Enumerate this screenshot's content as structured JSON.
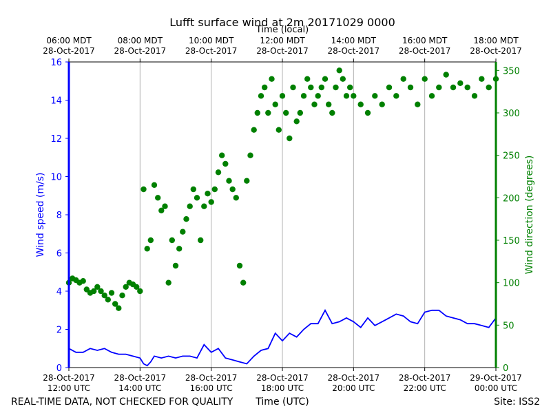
{
  "chart_data": {
    "type": "line+scatter",
    "title": "Lufft surface wind at 2m 20171029 0000",
    "top_axis_label": "Time (local)",
    "xlabel": "Time (UTC)",
    "footer_left": "REAL-TIME DATA, NOT CHECKED FOR QUALITY",
    "footer_right": "Site: ISS2",
    "x_range_hours_utc": [
      12,
      24
    ],
    "bottom_ticks": [
      {
        "hour": 12,
        "line1": "28-Oct-2017",
        "line2": "12:00 UTC"
      },
      {
        "hour": 14,
        "line1": "28-Oct-2017",
        "line2": "14:00 UTC"
      },
      {
        "hour": 16,
        "line1": "28-Oct-2017",
        "line2": "16:00 UTC"
      },
      {
        "hour": 18,
        "line1": "28-Oct-2017",
        "line2": "18:00 UTC"
      },
      {
        "hour": 20,
        "line1": "28-Oct-2017",
        "line2": "20:00 UTC"
      },
      {
        "hour": 22,
        "line1": "28-Oct-2017",
        "line2": "22:00 UTC"
      },
      {
        "hour": 24,
        "line1": "29-Oct-2017",
        "line2": "00:00 UTC"
      }
    ],
    "top_ticks": [
      {
        "hour": 12,
        "line1": "06:00 MDT",
        "line2": "28-Oct-2017"
      },
      {
        "hour": 14,
        "line1": "08:00 MDT",
        "line2": "28-Oct-2017"
      },
      {
        "hour": 16,
        "line1": "10:00 MDT",
        "line2": "28-Oct-2017"
      },
      {
        "hour": 18,
        "line1": "12:00 MDT",
        "line2": "28-Oct-2017"
      },
      {
        "hour": 20,
        "line1": "14:00 MDT",
        "line2": "28-Oct-2017"
      },
      {
        "hour": 22,
        "line1": "16:00 MDT",
        "line2": "28-Oct-2017"
      },
      {
        "hour": 24,
        "line1": "18:00 MDT",
        "line2": "28-Oct-2017"
      }
    ],
    "left_axis": {
      "label": "Wind speed (m/s)",
      "ylim": [
        0,
        16
      ],
      "ticks": [
        0,
        2,
        4,
        6,
        8,
        10,
        12,
        14,
        16
      ],
      "color": "#0000ff"
    },
    "right_axis": {
      "label": "Wind direction (degrees)",
      "ylim": [
        0,
        360
      ],
      "ticks": [
        0,
        50,
        100,
        150,
        200,
        250,
        300,
        350
      ],
      "color": "#008000"
    },
    "series": [
      {
        "name": "Wind speed",
        "axis": "left",
        "style": "line",
        "color": "#0000ff",
        "x": [
          12.0,
          12.2,
          12.4,
          12.6,
          12.8,
          13.0,
          13.2,
          13.4,
          13.6,
          13.8,
          14.0,
          14.1,
          14.2,
          14.3,
          14.4,
          14.6,
          14.8,
          15.0,
          15.2,
          15.4,
          15.6,
          15.8,
          16.0,
          16.2,
          16.4,
          16.6,
          16.8,
          17.0,
          17.2,
          17.4,
          17.6,
          17.8,
          18.0,
          18.2,
          18.4,
          18.6,
          18.8,
          19.0,
          19.2,
          19.4,
          19.6,
          19.8,
          20.0,
          20.2,
          20.4,
          20.6,
          20.8,
          21.0,
          21.2,
          21.4,
          21.6,
          21.8,
          22.0,
          22.2,
          22.4,
          22.6,
          22.8,
          23.0,
          23.2,
          23.4,
          23.6,
          23.8,
          24.0
        ],
        "y": [
          1.0,
          0.8,
          0.8,
          1.0,
          0.9,
          1.0,
          0.8,
          0.7,
          0.7,
          0.6,
          0.5,
          0.2,
          0.1,
          0.3,
          0.6,
          0.5,
          0.6,
          0.5,
          0.6,
          0.6,
          0.5,
          1.2,
          0.8,
          1.0,
          0.5,
          0.4,
          0.3,
          0.2,
          0.6,
          0.9,
          1.0,
          1.8,
          1.4,
          1.8,
          1.6,
          2.0,
          2.3,
          2.3,
          3.0,
          2.3,
          2.4,
          2.6,
          2.4,
          2.1,
          2.6,
          2.2,
          2.4,
          2.6,
          2.8,
          2.7,
          2.4,
          2.3,
          2.9,
          3.0,
          3.0,
          2.7,
          2.6,
          2.5,
          2.3,
          2.3,
          2.2,
          2.1,
          2.6
        ]
      },
      {
        "name": "Wind direction",
        "axis": "right",
        "style": "scatter",
        "color": "#008000",
        "x": [
          12.0,
          12.1,
          12.2,
          12.3,
          12.4,
          12.5,
          12.6,
          12.7,
          12.8,
          12.9,
          13.0,
          13.1,
          13.2,
          13.3,
          13.4,
          13.5,
          13.6,
          13.7,
          13.8,
          13.9,
          14.0,
          14.1,
          14.2,
          14.3,
          14.4,
          14.5,
          14.6,
          14.7,
          14.8,
          14.9,
          15.0,
          15.1,
          15.2,
          15.3,
          15.4,
          15.5,
          15.6,
          15.7,
          15.8,
          15.9,
          16.0,
          16.1,
          16.2,
          16.3,
          16.4,
          16.5,
          16.6,
          16.7,
          16.8,
          16.9,
          17.0,
          17.1,
          17.2,
          17.3,
          17.4,
          17.5,
          17.6,
          17.7,
          17.8,
          17.9,
          18.0,
          18.1,
          18.2,
          18.3,
          18.4,
          18.5,
          18.6,
          18.7,
          18.8,
          18.9,
          19.0,
          19.1,
          19.2,
          19.3,
          19.4,
          19.5,
          19.6,
          19.7,
          19.8,
          19.9,
          20.0,
          20.2,
          20.4,
          20.6,
          20.8,
          21.0,
          21.2,
          21.4,
          21.6,
          21.8,
          22.0,
          22.2,
          22.4,
          22.6,
          22.8,
          23.0,
          23.2,
          23.4,
          23.6,
          23.8,
          24.0
        ],
        "y": [
          100,
          105,
          103,
          100,
          102,
          92,
          88,
          90,
          95,
          90,
          85,
          80,
          88,
          75,
          70,
          85,
          95,
          100,
          98,
          95,
          90,
          210,
          140,
          150,
          215,
          200,
          185,
          190,
          100,
          150,
          120,
          140,
          160,
          175,
          190,
          210,
          200,
          150,
          190,
          205,
          195,
          210,
          230,
          250,
          240,
          220,
          210,
          200,
          120,
          100,
          220,
          250,
          280,
          300,
          320,
          330,
          300,
          340,
          310,
          280,
          320,
          300,
          270,
          330,
          290,
          300,
          320,
          340,
          330,
          310,
          320,
          330,
          340,
          310,
          300,
          330,
          350,
          340,
          320,
          330,
          320,
          310,
          300,
          320,
          310,
          330,
          320,
          340,
          330,
          310,
          340,
          320,
          330,
          345,
          330,
          335,
          330,
          320,
          340,
          330,
          340
        ]
      }
    ]
  }
}
